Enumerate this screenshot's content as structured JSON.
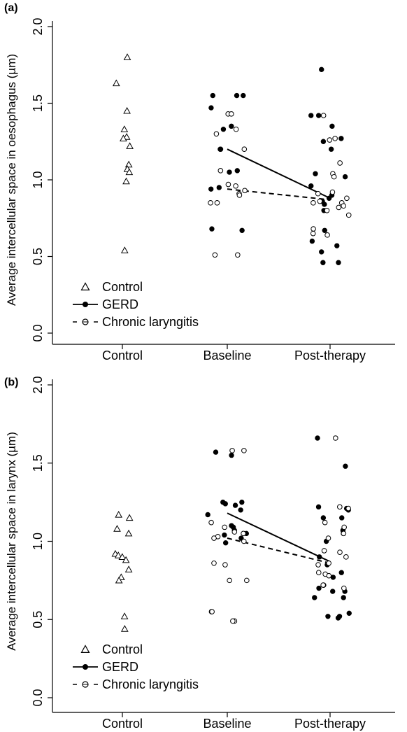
{
  "chart_data": [
    {
      "panel_label": "(a)",
      "type": "scatter",
      "ylabel": "Average intercellular space in oesophagus (µm)",
      "ylim": [
        0,
        2.0
      ],
      "yticks": [
        "0.0",
        "0.5",
        "1.0",
        "1.5",
        "2.0"
      ],
      "categories": [
        "Control",
        "Baseline",
        "Post-therapy"
      ],
      "legend": {
        "position": "bottom-left",
        "entries": [
          "Control",
          "GERD",
          "Chronic laryngitis"
        ]
      },
      "series": [
        {
          "name": "Control",
          "marker": "open-triangle",
          "points": [
            {
              "category": "Control",
              "values": [
                1.8,
                1.63,
                1.45,
                1.33,
                1.28,
                1.27,
                1.22,
                1.1,
                1.07,
                1.05,
                0.99,
                0.54
              ]
            }
          ]
        },
        {
          "name": "GERD",
          "marker": "filled-circle",
          "line": "solid",
          "means": [
            1.2,
            0.88
          ],
          "points": [
            {
              "category": "Baseline",
              "values": [
                1.55,
                1.55,
                1.55,
                1.47,
                1.35,
                1.33,
                1.2,
                1.2,
                1.06,
                1.05,
                0.95,
                0.94,
                0.68,
                0.67
              ]
            },
            {
              "category": "Post-therapy",
              "values": [
                1.72,
                1.42,
                1.42,
                1.35,
                1.27,
                1.25,
                1.2,
                1.04,
                1.02,
                0.96,
                0.9,
                0.88,
                0.86,
                0.84,
                0.8,
                0.67,
                0.6,
                0.57,
                0.53,
                0.46,
                0.46
              ]
            }
          ]
        },
        {
          "name": "Chronic laryngitis",
          "marker": "open-circle",
          "line": "dashed",
          "means": [
            0.94,
            0.87
          ],
          "points": [
            {
              "category": "Baseline",
              "values": [
                1.43,
                1.43,
                1.33,
                1.3,
                1.2,
                1.06,
                0.97,
                0.96,
                0.93,
                0.91,
                0.9,
                0.85,
                0.85,
                0.51,
                0.51
              ]
            },
            {
              "category": "Post-therapy",
              "values": [
                1.42,
                1.27,
                1.26,
                1.11,
                1.04,
                1.02,
                0.92,
                0.91,
                0.88,
                0.86,
                0.85,
                0.85,
                0.83,
                0.82,
                0.8,
                0.77,
                0.68,
                0.65,
                0.64
              ]
            }
          ]
        }
      ]
    },
    {
      "panel_label": "(b)",
      "type": "scatter",
      "ylabel": "Average intercellular space in larynx (µm)",
      "ylim": [
        0,
        2.0
      ],
      "yticks": [
        "0.0",
        "0.5",
        "1.0",
        "1.5",
        "2.0"
      ],
      "categories": [
        "Control",
        "Baseline",
        "Post-therapy"
      ],
      "legend": {
        "position": "bottom-left",
        "entries": [
          "Control",
          "GERD",
          "Chronic laryngitis"
        ]
      },
      "series": [
        {
          "name": "Control",
          "marker": "open-triangle",
          "points": [
            {
              "category": "Control",
              "values": [
                1.17,
                1.15,
                1.08,
                1.05,
                0.92,
                0.91,
                0.9,
                0.88,
                0.82,
                0.77,
                0.75,
                0.52,
                0.44
              ]
            }
          ]
        },
        {
          "name": "GERD",
          "marker": "filled-circle",
          "line": "solid",
          "means": [
            1.18,
            0.87
          ],
          "points": [
            {
              "category": "Baseline",
              "values": [
                1.57,
                1.55,
                1.25,
                1.25,
                1.24,
                1.23,
                1.2,
                1.17,
                1.1,
                1.09,
                1.07,
                1.05,
                1.04,
                1.02,
                0.99
              ]
            },
            {
              "category": "Post-therapy",
              "values": [
                1.66,
                1.48,
                1.22,
                1.21,
                1.2,
                1.15,
                1.15,
                1.07,
                1.05,
                1.0,
                0.9,
                0.85,
                0.8,
                0.77,
                0.72,
                0.7,
                0.68,
                0.68,
                0.64,
                0.64,
                0.54,
                0.52,
                0.52,
                0.51
              ]
            }
          ]
        },
        {
          "name": "Chronic laryngitis",
          "marker": "open-circle",
          "line": "dashed",
          "means": [
            1.02,
            0.86
          ],
          "points": [
            {
              "category": "Baseline",
              "values": [
                1.58,
                1.58,
                1.12,
                1.09,
                1.06,
                1.05,
                1.03,
                1.02,
                1.0,
                0.86,
                0.85,
                0.75,
                0.75,
                0.55,
                0.55,
                0.49,
                0.49
              ]
            },
            {
              "category": "Post-therapy",
              "values": [
                1.66,
                1.22,
                1.21,
                1.12,
                1.09,
                1.05,
                1.02,
                0.94,
                0.93,
                0.9,
                0.86,
                0.85,
                0.8,
                0.79,
                0.78,
                0.72,
                0.7
              ]
            }
          ]
        }
      ]
    }
  ]
}
